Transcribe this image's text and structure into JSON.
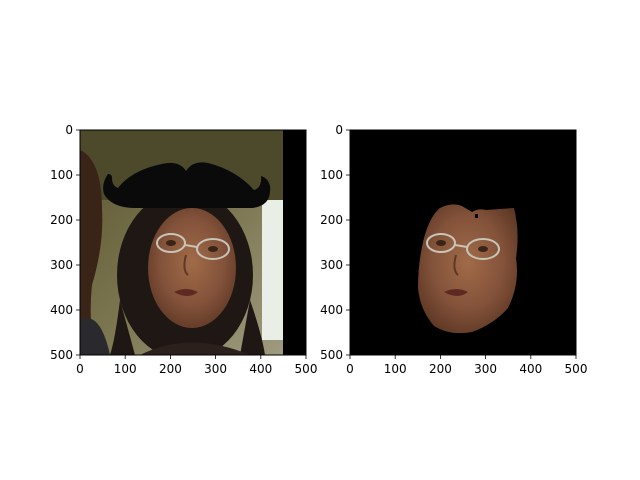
{
  "chart_data": [
    {
      "type": "image",
      "panel": "left",
      "content": "photo with mustache overlay",
      "x_ticks": [
        0,
        100,
        200,
        300,
        400,
        500
      ],
      "y_ticks": [
        0,
        100,
        200,
        300,
        400,
        500
      ],
      "xlim": [
        0,
        500
      ],
      "ylim": [
        500,
        0
      ],
      "image_extent_x": [
        0,
        450
      ],
      "grid": false
    },
    {
      "type": "image",
      "panel": "right",
      "content": "segmented face mask on black background",
      "x_ticks": [
        0,
        100,
        200,
        300,
        400,
        500
      ],
      "y_ticks": [
        0,
        100,
        200,
        300,
        400,
        500
      ],
      "xlim": [
        0,
        500
      ],
      "ylim": [
        500,
        0
      ],
      "grid": false
    }
  ],
  "colors": {
    "frame": "#000000",
    "mask_background": "#000000",
    "skin": "#8b5a3c",
    "skin_shadow": "#5e3825",
    "hair": "#1e1714",
    "photo_background": "#6f6a43",
    "mustache": "#0a0a0a",
    "right_strip": "#e9efe6"
  },
  "icons": {
    "left_image": "photo-face-icon",
    "right_image": "segmented-face-icon"
  }
}
